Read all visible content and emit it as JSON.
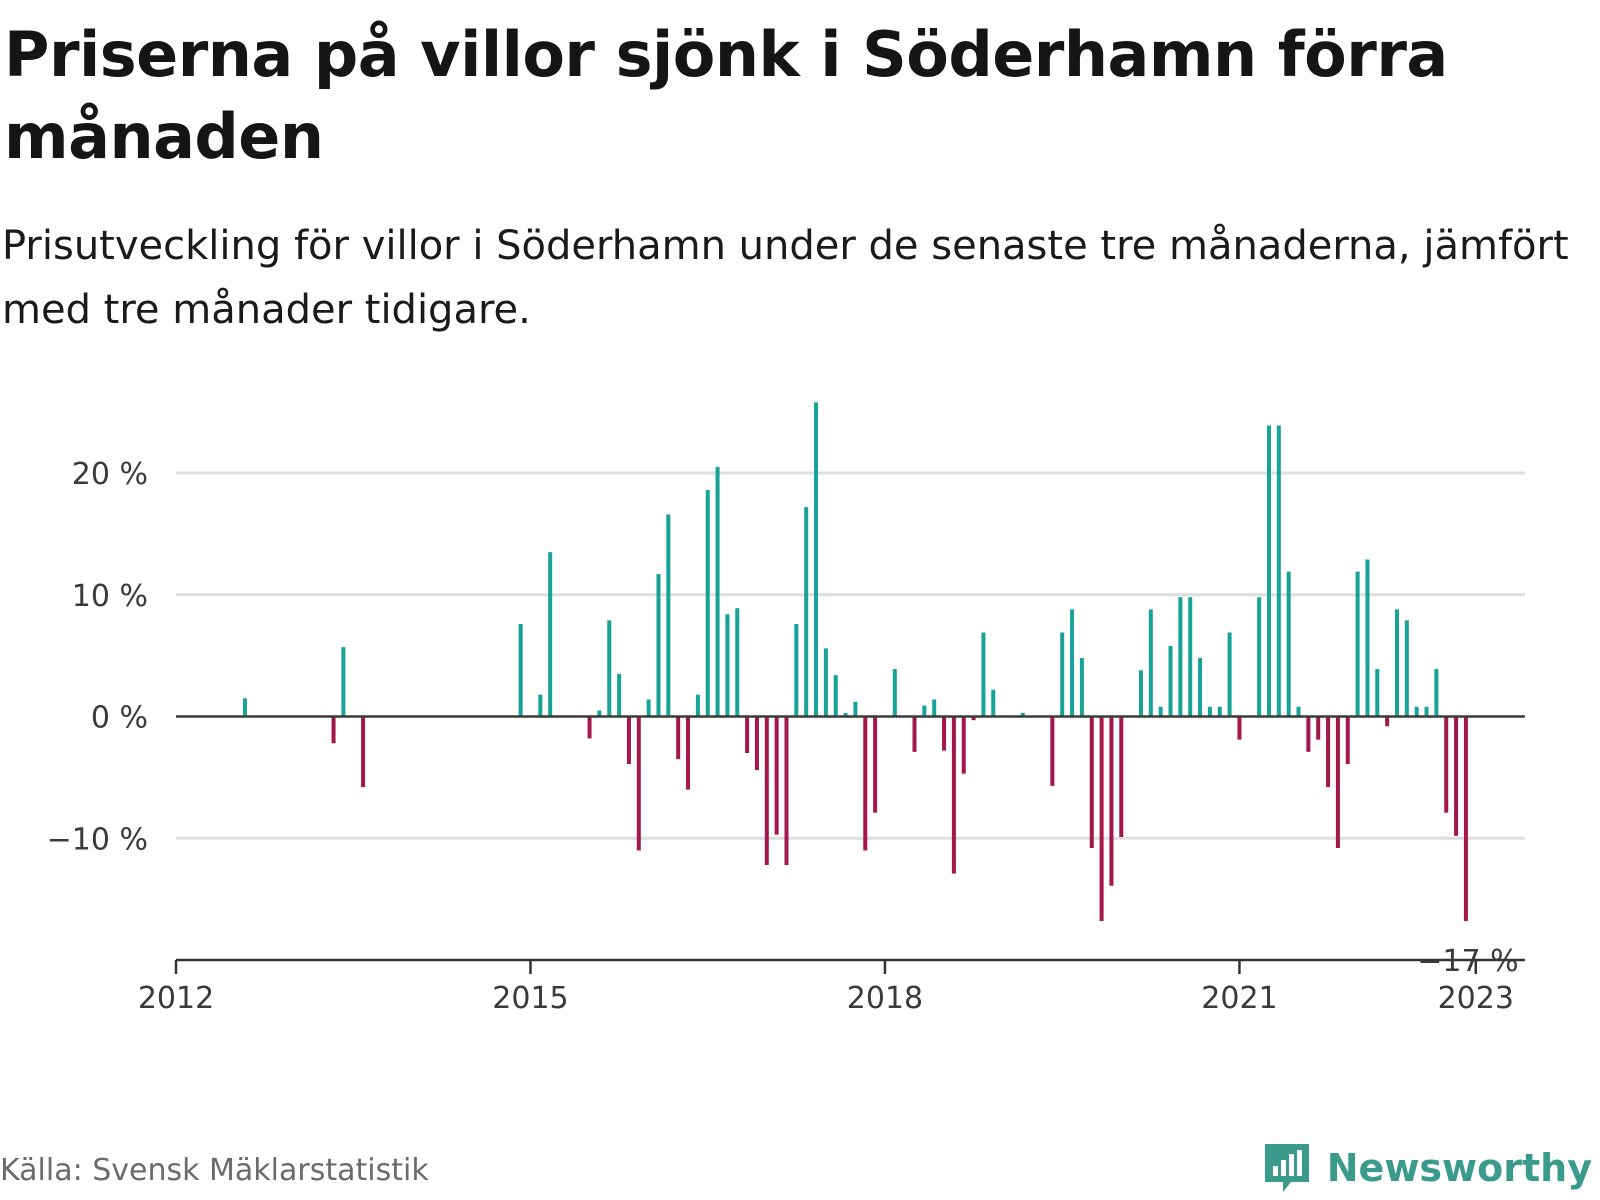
{
  "title": "Priserna på villor sjönk i Söderhamn förra månaden",
  "subtitle": "Prisutveckling för villor i Söderhamn under de senaste tre månaderna, jämfört med tre månader tidigare.",
  "source": "Källa: Svensk Mäklarstatistik",
  "brand": {
    "name": "Newsworthy",
    "logo_icon": "newsworthy-logo-icon"
  },
  "colors": {
    "positive": "#17a398",
    "negative": "#a3174a",
    "grid": "#dedede",
    "axis": "#333333",
    "brand": "#3a9b8c"
  },
  "chart_data": {
    "type": "bar",
    "title": "Priserna på villor sjönk i Söderhamn förra månaden",
    "subtitle": "Prisutveckling för villor i Söderhamn under de senaste tre månaderna, jämfört med tre månader tidigare.",
    "xlabel": "",
    "ylabel": "",
    "ylim": [
      -20,
      26
    ],
    "xlim": [
      "2012-01",
      "2023-06"
    ],
    "grid": true,
    "legend": "none",
    "y_ticks": [
      {
        "value": 20,
        "label": "20 %"
      },
      {
        "value": 10,
        "label": "10 %"
      },
      {
        "value": 0,
        "label": "0 %"
      },
      {
        "value": -10,
        "label": "−10 %"
      }
    ],
    "x_ticks": [
      {
        "date": "2012-01",
        "label": "2012"
      },
      {
        "date": "2015-01",
        "label": "2015"
      },
      {
        "date": "2018-01",
        "label": "2018"
      },
      {
        "date": "2021-01",
        "label": "2021"
      },
      {
        "date": "2023-01",
        "label": "2023"
      }
    ],
    "last_value_label": "−17 %",
    "series": [
      {
        "values": [
          {
            "date": "2012-08",
            "value": 1.5
          },
          {
            "date": "2013-05",
            "value": -2.2
          },
          {
            "date": "2013-06",
            "value": 5.7
          },
          {
            "date": "2013-08",
            "value": -5.8
          },
          {
            "date": "2014-12",
            "value": 7.6
          },
          {
            "date": "2015-02",
            "value": 1.8
          },
          {
            "date": "2015-03",
            "value": 13.5
          },
          {
            "date": "2015-07",
            "value": -1.8
          },
          {
            "date": "2015-08",
            "value": 0.5
          },
          {
            "date": "2015-09",
            "value": 7.9
          },
          {
            "date": "2015-10",
            "value": 3.5
          },
          {
            "date": "2015-11",
            "value": -3.9
          },
          {
            "date": "2015-12",
            "value": -11.0
          },
          {
            "date": "2016-01",
            "value": 1.4
          },
          {
            "date": "2016-02",
            "value": 11.7
          },
          {
            "date": "2016-03",
            "value": 16.6
          },
          {
            "date": "2016-04",
            "value": -3.5
          },
          {
            "date": "2016-05",
            "value": -6.0
          },
          {
            "date": "2016-06",
            "value": 1.8
          },
          {
            "date": "2016-07",
            "value": 18.6
          },
          {
            "date": "2016-08",
            "value": 20.5
          },
          {
            "date": "2016-09",
            "value": 8.4
          },
          {
            "date": "2016-10",
            "value": 8.9
          },
          {
            "date": "2016-11",
            "value": -3.0
          },
          {
            "date": "2016-12",
            "value": -4.4
          },
          {
            "date": "2017-01",
            "value": -12.2
          },
          {
            "date": "2017-02",
            "value": -9.7
          },
          {
            "date": "2017-03",
            "value": -12.2
          },
          {
            "date": "2017-04",
            "value": 7.6
          },
          {
            "date": "2017-05",
            "value": 17.2
          },
          {
            "date": "2017-06",
            "value": 25.8
          },
          {
            "date": "2017-07",
            "value": 5.6
          },
          {
            "date": "2017-08",
            "value": 3.4
          },
          {
            "date": "2017-09",
            "value": 0.3
          },
          {
            "date": "2017-10",
            "value": 1.2
          },
          {
            "date": "2017-11",
            "value": -11.0
          },
          {
            "date": "2017-12",
            "value": -7.9
          },
          {
            "date": "2018-02",
            "value": 3.9
          },
          {
            "date": "2018-04",
            "value": -2.9
          },
          {
            "date": "2018-05",
            "value": 0.9
          },
          {
            "date": "2018-06",
            "value": 1.4
          },
          {
            "date": "2018-07",
            "value": -2.8
          },
          {
            "date": "2018-08",
            "value": -12.9
          },
          {
            "date": "2018-09",
            "value": -4.7
          },
          {
            "date": "2018-10",
            "value": -0.3
          },
          {
            "date": "2018-11",
            "value": 6.9
          },
          {
            "date": "2018-12",
            "value": 2.2
          },
          {
            "date": "2019-03",
            "value": 0.3
          },
          {
            "date": "2019-06",
            "value": -5.7
          },
          {
            "date": "2019-07",
            "value": 6.9
          },
          {
            "date": "2019-08",
            "value": 8.8
          },
          {
            "date": "2019-09",
            "value": 4.8
          },
          {
            "date": "2019-10",
            "value": -10.8
          },
          {
            "date": "2019-11",
            "value": -16.8
          },
          {
            "date": "2019-12",
            "value": -13.9
          },
          {
            "date": "2020-01",
            "value": -9.9
          },
          {
            "date": "2020-03",
            "value": 3.8
          },
          {
            "date": "2020-04",
            "value": 8.8
          },
          {
            "date": "2020-05",
            "value": 0.8
          },
          {
            "date": "2020-06",
            "value": 5.8
          },
          {
            "date": "2020-07",
            "value": 9.8
          },
          {
            "date": "2020-08",
            "value": 9.8
          },
          {
            "date": "2020-09",
            "value": 4.8
          },
          {
            "date": "2020-10",
            "value": 0.8
          },
          {
            "date": "2020-11",
            "value": 0.8
          },
          {
            "date": "2020-12",
            "value": 6.9
          },
          {
            "date": "2021-01",
            "value": -1.9
          },
          {
            "date": "2021-03",
            "value": 9.8
          },
          {
            "date": "2021-04",
            "value": 23.9
          },
          {
            "date": "2021-05",
            "value": 23.9
          },
          {
            "date": "2021-06",
            "value": 11.9
          },
          {
            "date": "2021-07",
            "value": 0.8
          },
          {
            "date": "2021-08",
            "value": -2.9
          },
          {
            "date": "2021-09",
            "value": -1.9
          },
          {
            "date": "2021-10",
            "value": -5.8
          },
          {
            "date": "2021-11",
            "value": -10.8
          },
          {
            "date": "2021-12",
            "value": -3.9
          },
          {
            "date": "2022-01",
            "value": 11.9
          },
          {
            "date": "2022-02",
            "value": 12.9
          },
          {
            "date": "2022-03",
            "value": 3.9
          },
          {
            "date": "2022-04",
            "value": -0.8
          },
          {
            "date": "2022-05",
            "value": 8.8
          },
          {
            "date": "2022-06",
            "value": 7.9
          },
          {
            "date": "2022-07",
            "value": 0.8
          },
          {
            "date": "2022-08",
            "value": 0.8
          },
          {
            "date": "2022-09",
            "value": 3.9
          },
          {
            "date": "2022-10",
            "value": -7.9
          },
          {
            "date": "2022-11",
            "value": -9.8
          },
          {
            "date": "2022-12",
            "value": -16.8
          }
        ]
      }
    ]
  }
}
